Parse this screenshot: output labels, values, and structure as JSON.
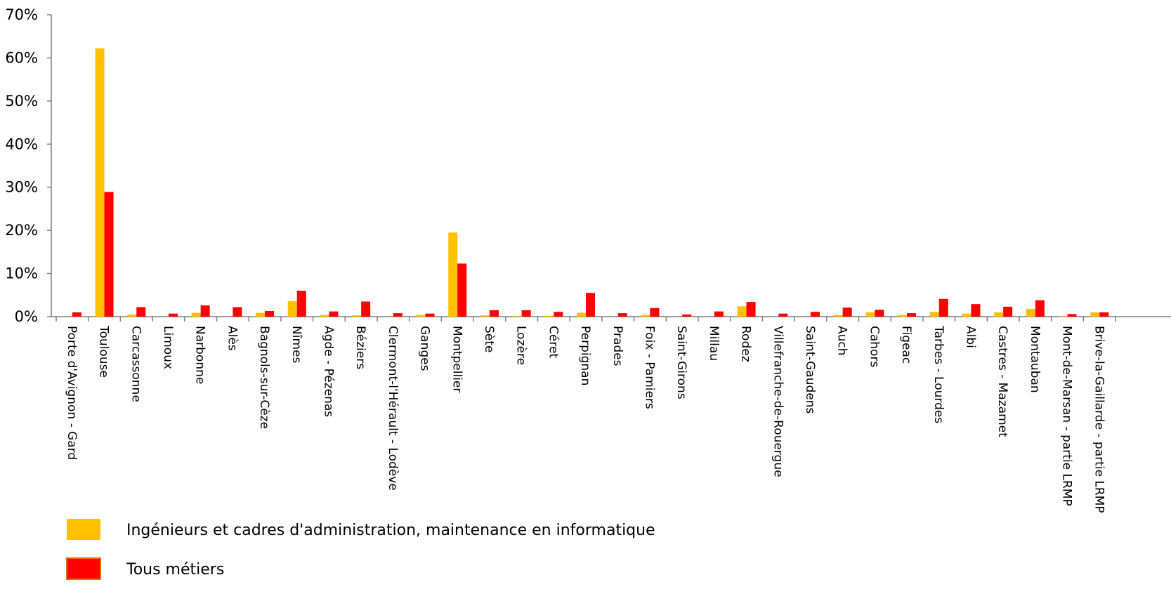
{
  "chart_data": {
    "type": "bar",
    "title": "",
    "xlabel": "",
    "ylabel": "",
    "ylim": [
      0,
      70
    ],
    "y_ticks": [
      "0%",
      "10%",
      "20%",
      "30%",
      "40%",
      "50%",
      "60%",
      "70%"
    ],
    "y_tick_values": [
      0,
      10,
      20,
      30,
      40,
      50,
      60,
      70
    ],
    "grid": false,
    "legend_position": "bottom-left",
    "categories": [
      "Porte d'Avignon - Gard",
      "Toulouse",
      "Carcassonne",
      "Limoux",
      "Narbonne",
      "Alès",
      "Bagnols-sur-Cèze",
      "Nîmes",
      "Agde - Pézenas",
      "Béziers",
      "Clermont-l'Hérault - Lodève",
      "Ganges",
      "Montpellier",
      "Sète",
      "Lozère",
      "Céret",
      "Perpignan",
      "Prades",
      "Foix - Pamiers",
      "Saint-Girons",
      "Millau",
      "Rodez",
      "Villefranche-de-Rouergue",
      "Saint-Gaudens",
      "Auch",
      "Cahors",
      "Figeac",
      "Tarbes - Lourdes",
      "Albi",
      "Castres - Mazamet",
      "Montauban",
      "Mont-de-Marsan - partie LRMP",
      "Brive-la-Gaillarde - partie LRMP"
    ],
    "series": [
      {
        "name": "Ingénieurs et cadres d'administration, maintenance en informatique",
        "color": "#FFC000",
        "values": [
          0,
          62.2,
          0.5,
          0,
          0.9,
          0,
          0.9,
          3.6,
          0.4,
          0.3,
          0,
          0.4,
          19.5,
          0.3,
          0.1,
          0.2,
          0.9,
          0,
          0.4,
          0,
          0,
          2.4,
          0,
          0,
          0.4,
          1.0,
          0.4,
          1.1,
          0.7,
          1.0,
          1.8,
          0.1,
          1.0
        ]
      },
      {
        "name": "Tous métiers",
        "color": "#FF0000",
        "values": [
          1.0,
          28.9,
          2.2,
          0.7,
          2.6,
          2.2,
          1.3,
          6.0,
          1.2,
          3.5,
          0.8,
          0.7,
          12.3,
          1.5,
          1.5,
          1.1,
          5.5,
          0.8,
          2.0,
          0.5,
          1.2,
          3.4,
          0.7,
          1.1,
          2.1,
          1.6,
          0.8,
          4.1,
          2.9,
          2.3,
          3.8,
          0.6,
          1.0
        ]
      }
    ]
  }
}
